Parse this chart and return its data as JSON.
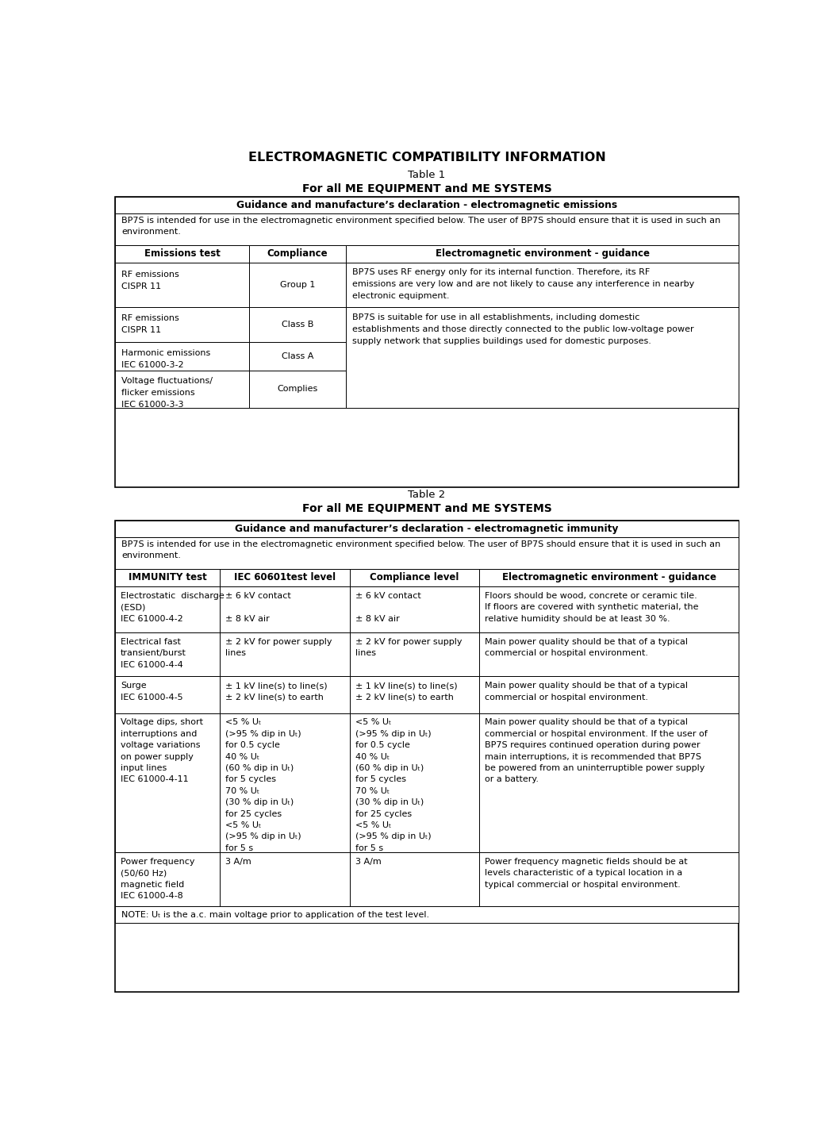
{
  "title": "ELECTROMAGNETIC COMPATIBILITY INFORMATION",
  "t1_sub1": "Table 1",
  "t1_sub2": "For all ME EQUIPMENT and ME SYSTEMS",
  "t1_header": "Guidance and manufacture’s declaration - electromagnetic emissions",
  "t1_intro": "BP7S is intended for use in the electromagnetic environment specified below. The user of BP7S should ensure that it is used in such an\nenvironment.",
  "t1_col_headers": [
    "Emissions test",
    "Compliance",
    "Electromagnetic environment - guidance"
  ],
  "t1_r0_c1": "RF emissions\nCISPR 11",
  "t1_r0_c2": "Group 1",
  "t1_r0_c3": "BP7S uses RF energy only for its internal function. Therefore, its RF\nemissions are very low and are not likely to cause any interference in nearby\nelectronic equipment.",
  "t1_r1_c1": "RF emissions\nCISPR 11",
  "t1_r1_c2": "Class B",
  "t1_r1_c3": "BP7S is suitable for use in all establishments, including domestic\nestablishments and those directly connected to the public low-voltage power\nsupply network that supplies buildings used for domestic purposes.",
  "t1_r2_c1": "Harmonic emissions\nIEC 61000-3-2",
  "t1_r2_c2": "Class A",
  "t1_r3_c1": "Voltage fluctuations/\nflicker emissions\nIEC 61000-3-3",
  "t1_r3_c2": "Complies",
  "t2_sub1": "Table 2",
  "t2_sub2": "For all ME EQUIPMENT and ME SYSTEMS",
  "t2_header": "Guidance and manufacturer’s declaration - electromagnetic immunity",
  "t2_intro": "BP7S is intended for use in the electromagnetic environment specified below. The user of BP7S should ensure that it is used in such an\nenvironment.",
  "t2_col_headers": [
    "IMMUNITY test",
    "IEC 60601test level",
    "Compliance level",
    "Electromagnetic environment - guidance"
  ],
  "t2_r0_c1": "Electrostatic  discharge\n(ESD)\nIEC 61000-4-2",
  "t2_r0_c2": "± 6 kV contact\n\n± 8 kV air",
  "t2_r0_c3": "± 6 kV contact\n\n± 8 kV air",
  "t2_r0_c4": "Floors should be wood, concrete or ceramic tile.\nIf floors are covered with synthetic material, the\nrelative humidity should be at least 30 %.",
  "t2_r1_c1": "Electrical fast\ntransient/burst\nIEC 61000-4-4",
  "t2_r1_c2": "± 2 kV for power supply\nlines",
  "t2_r1_c3": "± 2 kV for power supply\nlines",
  "t2_r1_c4": "Main power quality should be that of a typical\ncommercial or hospital environment.",
  "t2_r2_c1": "Surge\nIEC 61000-4-5",
  "t2_r2_c2": "± 1 kV line(s) to line(s)\n± 2 kV line(s) to earth",
  "t2_r2_c3": "± 1 kV line(s) to line(s)\n± 2 kV line(s) to earth",
  "t2_r2_c4": "Main power quality should be that of a typical\ncommercial or hospital environment.",
  "t2_r3_c1": "Voltage dips, short\ninterruptions and\nvoltage variations\non power supply\ninput lines\nIEC 61000-4-11",
  "t2_r3_c2": "<5 % Uₜ\n(>95 % dip in Uₜ)\nfor 0.5 cycle\n40 % Uₜ\n(60 % dip in Uₜ)\nfor 5 cycles\n70 % Uₜ\n(30 % dip in Uₜ)\nfor 25 cycles\n<5 % Uₜ\n(>95 % dip in Uₜ)\nfor 5 s",
  "t2_r3_c3": "<5 % Uₜ\n(>95 % dip in Uₜ)\nfor 0.5 cycle\n40 % Uₜ\n(60 % dip in Uₜ)\nfor 5 cycles\n70 % Uₜ\n(30 % dip in Uₜ)\nfor 25 cycles\n<5 % Uₜ\n(>95 % dip in Uₜ)\nfor 5 s",
  "t2_r3_c4": "Main power quality should be that of a typical\ncommercial or hospital environment. If the user of\nBP7S requires continued operation during power\nmain interruptions, it is recommended that BP7S\nbe powered from an uninterruptible power supply\nor a battery.",
  "t2_r4_c1": "Power frequency\n(50/60 Hz)\nmagnetic field\nIEC 61000-4-8",
  "t2_r4_c2": "3 A/m",
  "t2_r4_c3": "3 A/m",
  "t2_r4_c4": "Power frequency magnetic fields should be at\nlevels characteristic of a typical location in a\ntypical commercial or hospital environment.",
  "note": "NOTE: Uₜ is the a.c. main voltage prior to application of the test level.",
  "bg_color": "#ffffff",
  "border_color": "#000000"
}
